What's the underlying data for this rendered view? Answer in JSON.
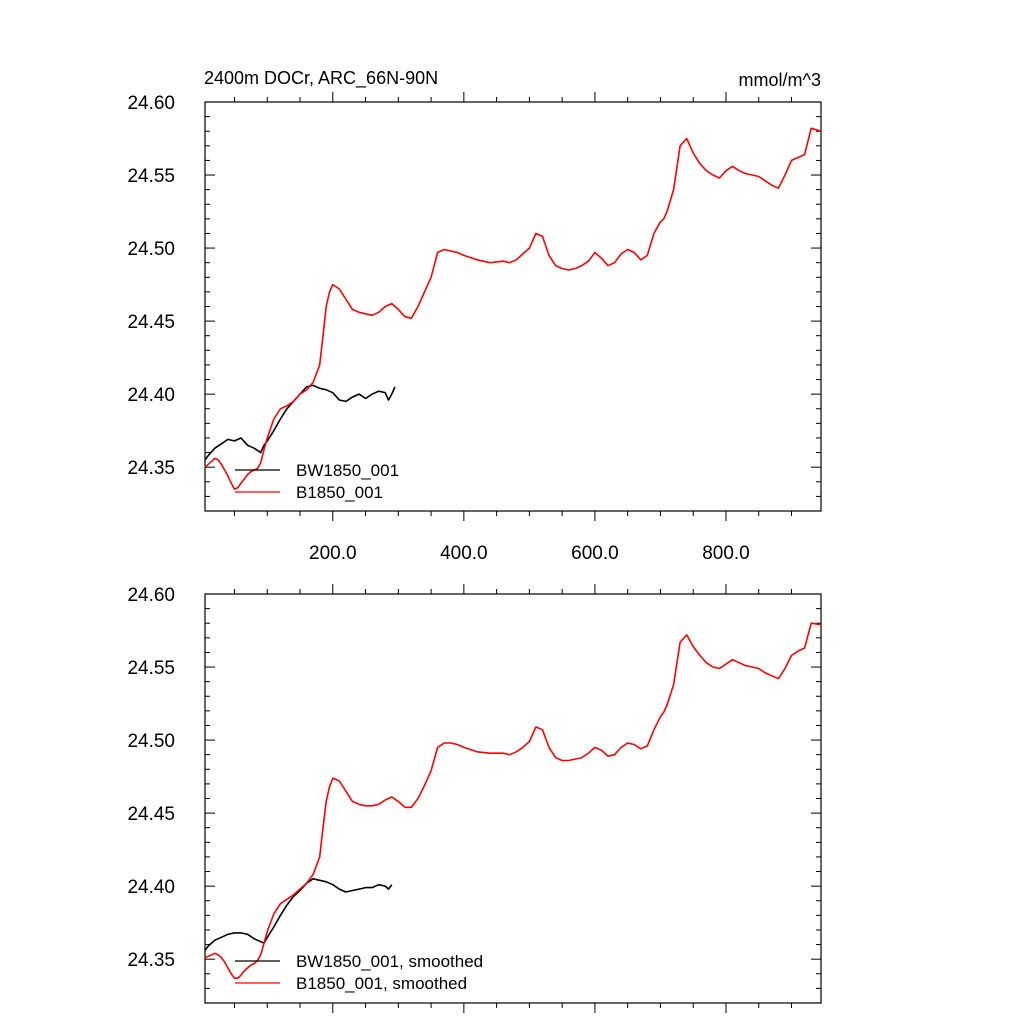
{
  "colors": {
    "BW1850_001": "#000000",
    "B1850_001": "#ff0000",
    "background": "#ffffff"
  },
  "chart_data": [
    {
      "type": "line",
      "title": "2400m DOCr, ARC_66N-90N",
      "units": "mmol/m^3",
      "xlabel": "",
      "ylabel": "",
      "xlim": [
        5,
        945
      ],
      "ylim": [
        24.32,
        24.6
      ],
      "xticks": [
        200,
        400,
        600,
        800
      ],
      "xtick_labels": [
        "200.0",
        "400.0",
        "600.0",
        "800.0"
      ],
      "xticks_labeled": true,
      "yticks": [
        24.35,
        24.4,
        24.45,
        24.5,
        24.55,
        24.6
      ],
      "ytick_labels": [
        "24.35",
        "24.40",
        "24.45",
        "24.50",
        "24.55",
        "24.60"
      ],
      "grid": false,
      "legend_position": "bottom-left",
      "series": [
        {
          "name": "BW1850_001",
          "color": "#000000",
          "x": [
            5,
            10,
            20,
            30,
            40,
            50,
            60,
            70,
            80,
            90,
            95,
            100,
            110,
            120,
            130,
            140,
            150,
            160,
            170,
            180,
            190,
            200,
            210,
            220,
            230,
            240,
            250,
            260,
            270,
            280,
            285,
            290,
            295
          ],
          "y": [
            24.355,
            24.358,
            24.363,
            24.366,
            24.369,
            24.368,
            24.37,
            24.365,
            24.363,
            24.36,
            24.365,
            24.368,
            24.375,
            24.383,
            24.39,
            24.395,
            24.4,
            24.405,
            24.406,
            24.404,
            24.403,
            24.401,
            24.396,
            24.395,
            24.398,
            24.4,
            24.397,
            24.4,
            24.402,
            24.401,
            24.396,
            24.4,
            24.405
          ]
        },
        {
          "name": "B1850_001",
          "color": "#ff0000",
          "x": [
            5,
            10,
            15,
            20,
            25,
            30,
            35,
            40,
            45,
            50,
            55,
            60,
            65,
            70,
            75,
            80,
            85,
            90,
            95,
            100,
            110,
            120,
            130,
            140,
            150,
            160,
            170,
            180,
            185,
            190,
            195,
            200,
            210,
            220,
            230,
            240,
            250,
            260,
            270,
            280,
            290,
            300,
            310,
            320,
            330,
            340,
            345,
            350,
            360,
            370,
            380,
            390,
            400,
            420,
            440,
            460,
            470,
            480,
            490,
            500,
            510,
            520,
            530,
            540,
            550,
            560,
            570,
            580,
            590,
            600,
            610,
            620,
            630,
            640,
            650,
            660,
            670,
            680,
            690,
            700,
            705,
            710,
            720,
            730,
            740,
            750,
            760,
            770,
            780,
            790,
            800,
            810,
            820,
            830,
            840,
            850,
            860,
            870,
            880,
            890,
            900,
            910,
            920,
            930,
            945
          ],
          "y": [
            24.35,
            24.352,
            24.354,
            24.356,
            24.355,
            24.352,
            24.348,
            24.344,
            24.339,
            24.335,
            24.336,
            24.339,
            24.342,
            24.345,
            24.347,
            24.348,
            24.349,
            24.353,
            24.362,
            24.37,
            24.383,
            24.39,
            24.392,
            24.395,
            24.4,
            24.403,
            24.408,
            24.42,
            24.44,
            24.46,
            24.47,
            24.475,
            24.472,
            24.465,
            24.458,
            24.456,
            24.455,
            24.454,
            24.456,
            24.46,
            24.462,
            24.458,
            24.453,
            24.452,
            24.46,
            24.47,
            24.475,
            24.48,
            24.497,
            24.499,
            24.498,
            24.497,
            24.495,
            24.492,
            24.49,
            24.491,
            24.49,
            24.492,
            24.496,
            24.5,
            24.51,
            24.508,
            24.495,
            24.488,
            24.486,
            24.485,
            24.486,
            24.488,
            24.491,
            24.497,
            24.493,
            24.488,
            24.49,
            24.496,
            24.499,
            24.497,
            24.492,
            24.495,
            24.51,
            24.518,
            24.52,
            24.525,
            24.54,
            24.57,
            24.575,
            24.565,
            24.558,
            24.553,
            24.55,
            24.548,
            24.553,
            24.556,
            24.553,
            24.551,
            24.55,
            24.549,
            24.546,
            24.543,
            24.541,
            24.55,
            24.56,
            24.562,
            24.564,
            24.582,
            24.58
          ]
        }
      ]
    },
    {
      "type": "line",
      "title": "",
      "units": "",
      "xlabel": "",
      "ylabel": "",
      "xlim": [
        5,
        945
      ],
      "ylim": [
        24.32,
        24.6
      ],
      "xticks": [
        200,
        400,
        600,
        800
      ],
      "xtick_labels": [],
      "xticks_labeled": false,
      "yticks": [
        24.35,
        24.4,
        24.45,
        24.5,
        24.55,
        24.6
      ],
      "ytick_labels": [
        "24.35",
        "24.40",
        "24.45",
        "24.50",
        "24.55",
        "24.60"
      ],
      "grid": false,
      "legend_position": "bottom-left",
      "series": [
        {
          "name": "BW1850_001, smoothed",
          "color": "#000000",
          "x": [
            5,
            10,
            20,
            30,
            40,
            50,
            60,
            70,
            80,
            90,
            95,
            100,
            110,
            120,
            130,
            140,
            150,
            160,
            170,
            180,
            190,
            200,
            210,
            220,
            230,
            240,
            250,
            260,
            270,
            280,
            285,
            290
          ],
          "y": [
            24.356,
            24.359,
            24.363,
            24.365,
            24.367,
            24.368,
            24.368,
            24.367,
            24.364,
            24.362,
            24.361,
            24.365,
            24.372,
            24.38,
            24.387,
            24.393,
            24.397,
            24.402,
            24.405,
            24.404,
            24.403,
            24.401,
            24.398,
            24.396,
            24.397,
            24.398,
            24.399,
            24.399,
            24.401,
            24.4,
            24.398,
            24.401
          ]
        },
        {
          "name": "B1850_001, smoothed",
          "color": "#ff0000",
          "x": [
            5,
            10,
            15,
            20,
            25,
            30,
            35,
            40,
            45,
            50,
            55,
            60,
            65,
            70,
            75,
            80,
            85,
            90,
            95,
            100,
            110,
            120,
            130,
            140,
            150,
            160,
            170,
            180,
            185,
            190,
            195,
            200,
            210,
            220,
            230,
            240,
            250,
            260,
            270,
            280,
            290,
            300,
            310,
            320,
            330,
            340,
            345,
            350,
            360,
            370,
            380,
            390,
            400,
            420,
            440,
            460,
            470,
            480,
            490,
            500,
            510,
            520,
            530,
            540,
            550,
            560,
            570,
            580,
            590,
            600,
            610,
            620,
            630,
            640,
            650,
            660,
            670,
            680,
            690,
            700,
            705,
            710,
            720,
            730,
            740,
            750,
            760,
            770,
            780,
            790,
            800,
            810,
            820,
            830,
            840,
            850,
            860,
            870,
            880,
            890,
            900,
            910,
            920,
            930,
            945
          ],
          "y": [
            24.351,
            24.352,
            24.353,
            24.354,
            24.353,
            24.351,
            24.348,
            24.344,
            24.34,
            24.337,
            24.337,
            24.339,
            24.342,
            24.344,
            24.346,
            24.347,
            24.349,
            24.353,
            24.361,
            24.369,
            24.381,
            24.388,
            24.391,
            24.394,
            24.398,
            24.402,
            24.408,
            24.42,
            24.44,
            24.458,
            24.468,
            24.474,
            24.472,
            24.465,
            24.458,
            24.456,
            24.455,
            24.455,
            24.456,
            24.459,
            24.461,
            24.458,
            24.454,
            24.454,
            24.46,
            24.469,
            24.474,
            24.479,
            24.495,
            24.498,
            24.498,
            24.497,
            24.495,
            24.492,
            24.491,
            24.491,
            24.49,
            24.492,
            24.495,
            24.499,
            24.509,
            24.507,
            24.495,
            24.488,
            24.486,
            24.486,
            24.487,
            24.488,
            24.491,
            24.495,
            24.493,
            24.489,
            24.49,
            24.495,
            24.498,
            24.497,
            24.494,
            24.496,
            24.507,
            24.516,
            24.519,
            24.524,
            24.538,
            24.567,
            24.572,
            24.564,
            24.558,
            24.553,
            24.55,
            24.549,
            24.552,
            24.555,
            24.553,
            24.551,
            24.55,
            24.549,
            24.546,
            24.544,
            24.542,
            24.549,
            24.558,
            24.561,
            24.563,
            24.58,
            24.579
          ]
        }
      ]
    }
  ]
}
